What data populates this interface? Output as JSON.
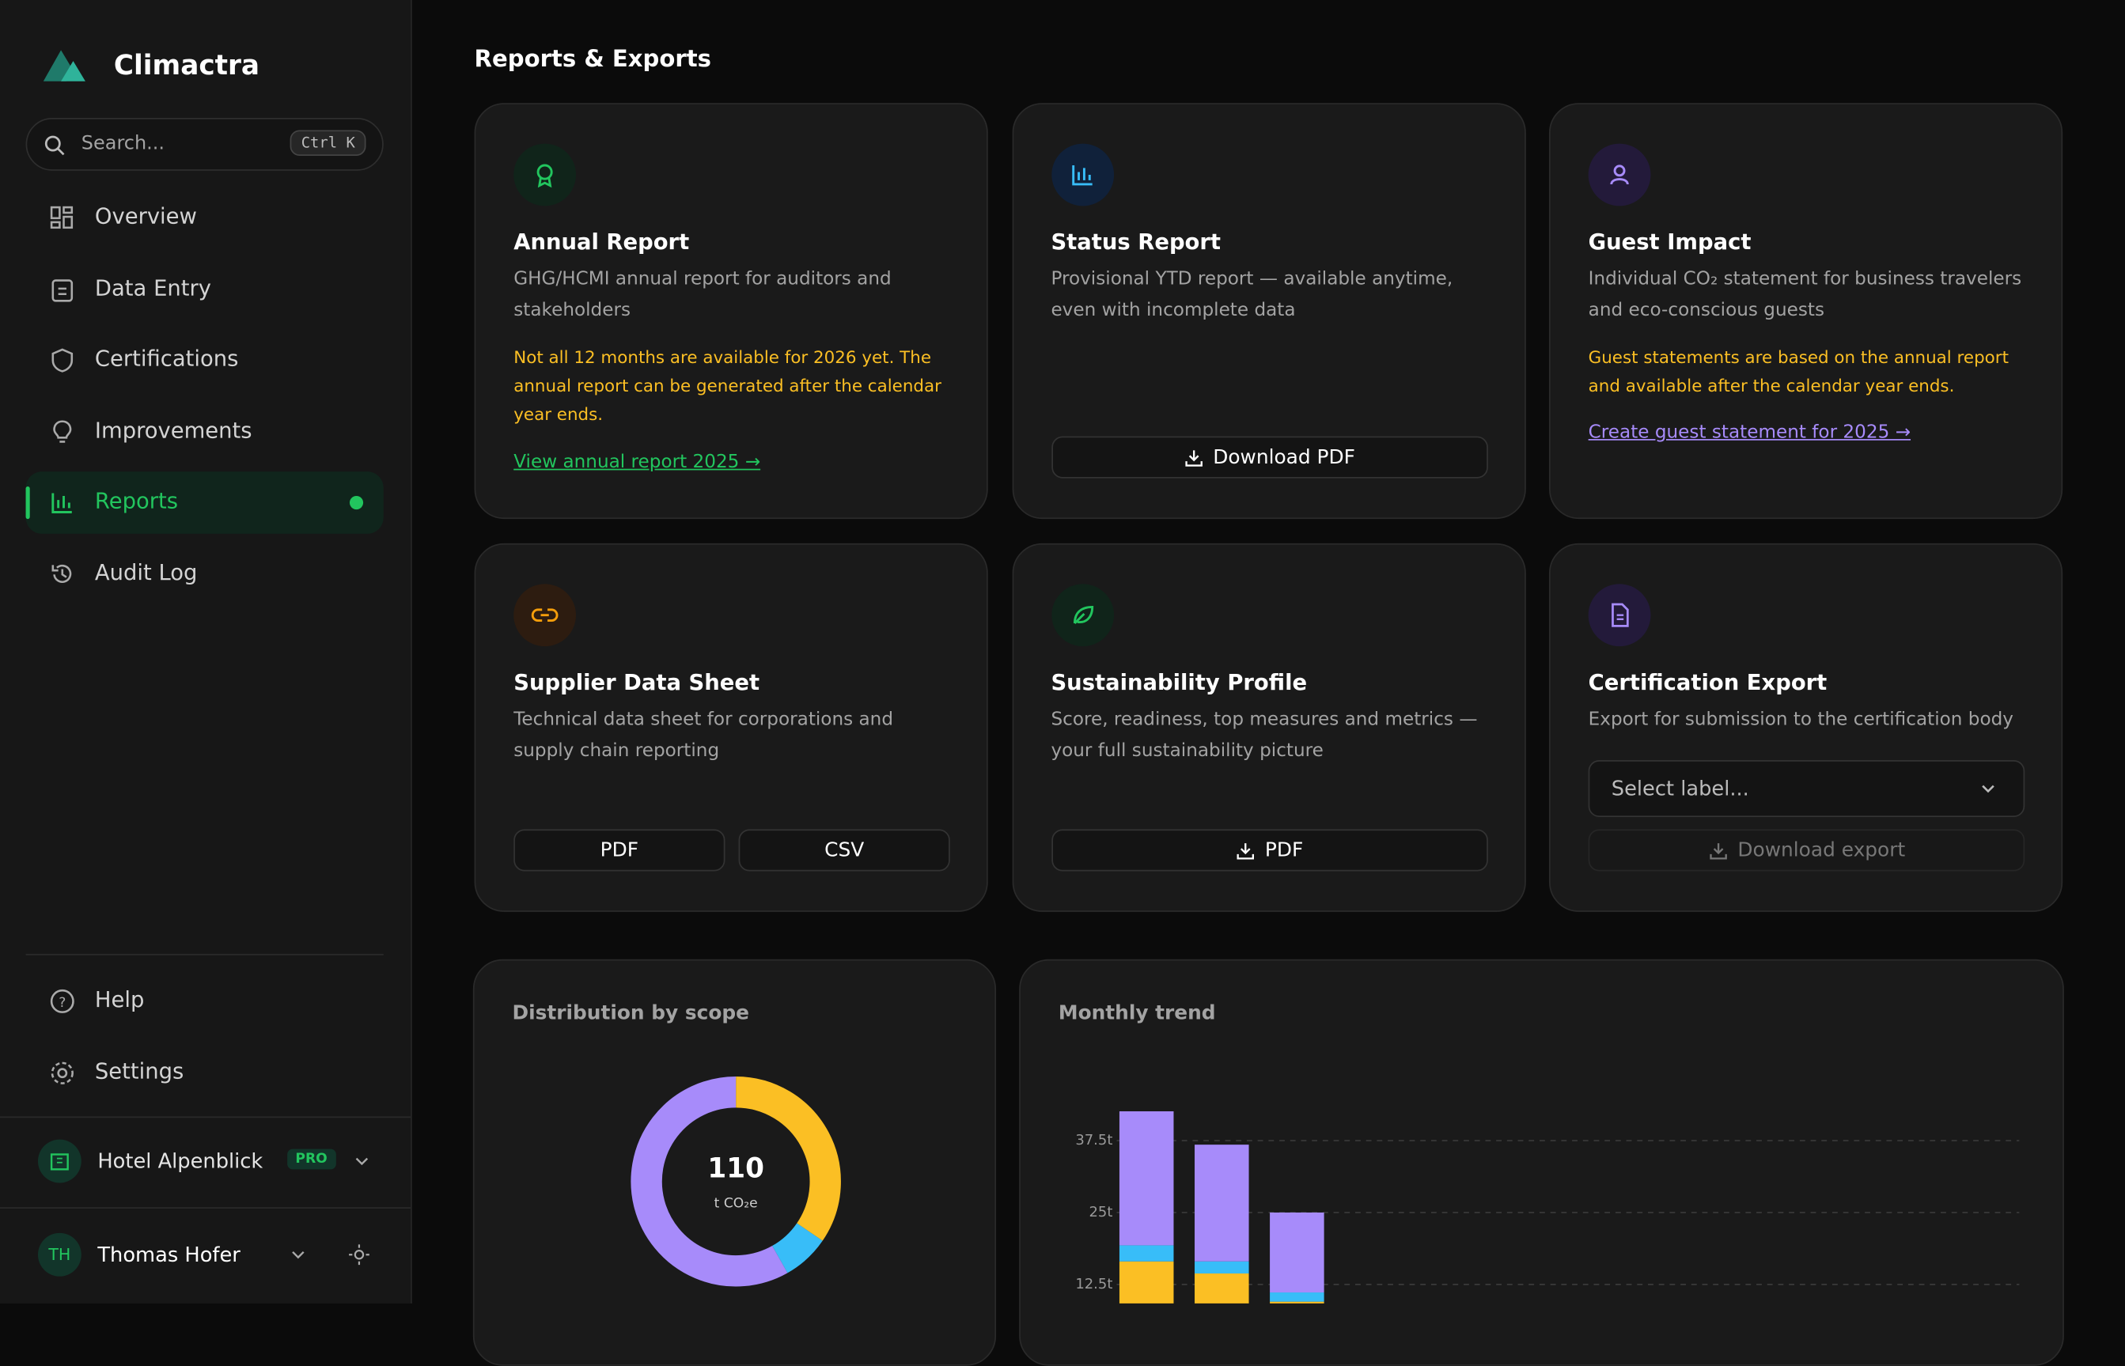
{
  "sidebar": {
    "brand": "Climactra",
    "search": "Search...",
    "shortcut": "Ctrl K",
    "nav": [
      "Overview",
      "Data Entry",
      "Certifications",
      "Improvements",
      "Reports",
      "Audit Log"
    ],
    "active": 4,
    "footer_nav": [
      "Help",
      "Settings"
    ],
    "org": "Hotel Alpenblick",
    "plan": "PRO",
    "user_initials": "TH",
    "user": "Thomas Hofer"
  },
  "page": {
    "title": "Reports & Exports"
  },
  "cards": [
    {
      "title": "Annual Report",
      "description": "GHG/HCMI annual report for auditors and stakeholders",
      "notice": "Not all 12 months are available for 2026 yet. The annual report can be generated after the calendar year ends.",
      "link": "View annual report 2025 →"
    },
    {
      "title": "Status Report",
      "description": "Provisional YTD report — available anytime, even with incomplete data",
      "buttons": [
        "Download PDF"
      ]
    },
    {
      "title": "Guest Impact",
      "description": "Individual CO₂ statement for business travelers and eco-conscious guests",
      "notice": "Guest statements are based on the annual report and available after the calendar year ends.",
      "link": "Create guest statement for 2025 →"
    },
    {
      "title": "Supplier Data Sheet",
      "description": "Technical data sheet for corporations and supply chain reporting",
      "buttons": [
        "PDF",
        "CSV"
      ]
    },
    {
      "title": "Sustainability Profile",
      "description": "Score, readiness, top measures and metrics — your full sustainability picture",
      "buttons": [
        "PDF"
      ]
    },
    {
      "title": "Certification Export",
      "description": "Export for submission to the certification body",
      "select": "Select label...",
      "buttons": [
        "Download export"
      ]
    }
  ],
  "chart_data": [
    {
      "type": "donut",
      "title": "Distribution by scope",
      "total": 110,
      "unit": "t CO₂e",
      "values": [
        38,
        8,
        64
      ],
      "colors": [
        "#fbbf24",
        "#38bdf8",
        "#a78bfa"
      ]
    },
    {
      "type": "bar",
      "title": "Monthly trend",
      "stacked": true,
      "categories": [
        null,
        null,
        null
      ],
      "series": [
        {
          "color": "#fbbf24",
          "values": [
            16.5,
            14.4,
            9.5
          ]
        },
        {
          "color": "#38bdf8",
          "values": [
            2.8,
            2.1,
            1.6
          ]
        },
        {
          "color": "#a78bfa",
          "values": [
            23.3,
            20.3,
            13.9
          ]
        }
      ],
      "ylim": [
        0,
        45
      ],
      "yticks": [
        {
          "value": 12.5,
          "label": "12.5t"
        },
        {
          "value": 25,
          "label": "25t"
        },
        {
          "value": 37.5,
          "label": "37.5t"
        }
      ],
      "grid": true
    }
  ]
}
